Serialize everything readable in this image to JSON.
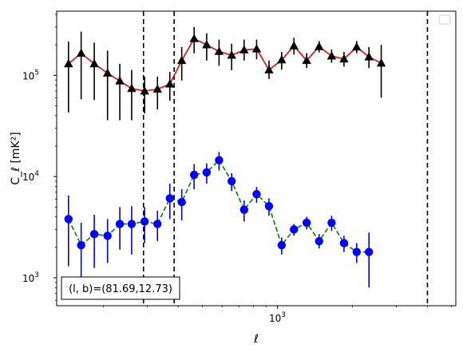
{
  "chart_data": {
    "type": "scatter",
    "title": "",
    "xlabel": "ℓ",
    "ylabel": "C_ℓ  [mK²]",
    "xscale": "log",
    "yscale": "log",
    "xlim": [
      130,
      5200
    ],
    "ylim": [
      530,
      430000
    ],
    "grid": false,
    "legend": {
      "placement": "top-right",
      "entries": []
    },
    "x_ticks": [
      {
        "value": 1000,
        "base": "10",
        "exp": "3"
      }
    ],
    "y_ticks": [
      {
        "value": 1000,
        "base": "10",
        "exp": "3"
      },
      {
        "value": 10000,
        "base": "10",
        "exp": "4"
      },
      {
        "value": 100000,
        "base": "10",
        "exp": "5"
      }
    ],
    "annotation": "(l, b)=(81.69,12.73)",
    "vlines": [
      290,
      385,
      4000
    ],
    "series": [
      {
        "marker": "triangle",
        "color": "#000000",
        "line_color": "#ff0000",
        "line_style": "solid",
        "points": [
          {
            "x": 145,
            "y": 130000,
            "lo": 43000,
            "hi": 215000
          },
          {
            "x": 163,
            "y": 165000,
            "lo": 58000,
            "hi": 270000
          },
          {
            "x": 184,
            "y": 130000,
            "lo": 57000,
            "hi": 210000
          },
          {
            "x": 208,
            "y": 105000,
            "lo": 36000,
            "hi": 175000
          },
          {
            "x": 233,
            "y": 88000,
            "lo": 36000,
            "hi": 130000
          },
          {
            "x": 260,
            "y": 74000,
            "lo": 36000,
            "hi": 113000
          },
          {
            "x": 293,
            "y": 70000,
            "lo": 42000,
            "hi": 97000
          },
          {
            "x": 330,
            "y": 73000,
            "lo": 46000,
            "hi": 97000
          },
          {
            "x": 370,
            "y": 82000,
            "lo": 56000,
            "hi": 108000
          },
          {
            "x": 413,
            "y": 140000,
            "lo": 89000,
            "hi": 190000
          },
          {
            "x": 463,
            "y": 230000,
            "lo": 165000,
            "hi": 300000
          },
          {
            "x": 520,
            "y": 200000,
            "lo": 140000,
            "hi": 260000
          },
          {
            "x": 583,
            "y": 172000,
            "lo": 124000,
            "hi": 225000
          },
          {
            "x": 655,
            "y": 158000,
            "lo": 112000,
            "hi": 205000
          },
          {
            "x": 735,
            "y": 178000,
            "lo": 140000,
            "hi": 225000
          },
          {
            "x": 825,
            "y": 182000,
            "lo": 144000,
            "hi": 225000
          },
          {
            "x": 925,
            "y": 113000,
            "lo": 92000,
            "hi": 140000
          },
          {
            "x": 1040,
            "y": 142000,
            "lo": 114000,
            "hi": 170000
          },
          {
            "x": 1165,
            "y": 195000,
            "lo": 160000,
            "hi": 235000
          },
          {
            "x": 1310,
            "y": 140000,
            "lo": 118000,
            "hi": 165000
          },
          {
            "x": 1470,
            "y": 192000,
            "lo": 168000,
            "hi": 218000
          },
          {
            "x": 1650,
            "y": 155000,
            "lo": 133000,
            "hi": 180000
          },
          {
            "x": 1850,
            "y": 145000,
            "lo": 122000,
            "hi": 170000
          },
          {
            "x": 2080,
            "y": 190000,
            "lo": 165000,
            "hi": 218000
          },
          {
            "x": 2330,
            "y": 152000,
            "lo": 118000,
            "hi": 190000
          },
          {
            "x": 2610,
            "y": 132000,
            "lo": 60000,
            "hi": 200000
          }
        ]
      },
      {
        "marker": "circle",
        "color": "#0000ff",
        "line_color": "#008000",
        "line_style": "dashed",
        "points": [
          {
            "x": 145,
            "y": 3800,
            "lo": 1300,
            "hi": 6500
          },
          {
            "x": 163,
            "y": 2100,
            "lo": 800,
            "hi": 3500
          },
          {
            "x": 184,
            "y": 2700,
            "lo": 1250,
            "hi": 4200
          },
          {
            "x": 208,
            "y": 2600,
            "lo": 1400,
            "hi": 3800
          },
          {
            "x": 233,
            "y": 3400,
            "lo": 1900,
            "hi": 5000
          },
          {
            "x": 260,
            "y": 3400,
            "lo": 1700,
            "hi": 5100
          },
          {
            "x": 293,
            "y": 3600,
            "lo": 2200,
            "hi": 5000
          },
          {
            "x": 330,
            "y": 3400,
            "lo": 2300,
            "hi": 4600
          },
          {
            "x": 370,
            "y": 6100,
            "lo": 3800,
            "hi": 8500
          },
          {
            "x": 413,
            "y": 5600,
            "lo": 3700,
            "hi": 7500
          },
          {
            "x": 463,
            "y": 10400,
            "lo": 7500,
            "hi": 13300
          },
          {
            "x": 520,
            "y": 11000,
            "lo": 8500,
            "hi": 13500
          },
          {
            "x": 583,
            "y": 14500,
            "lo": 11500,
            "hi": 17500
          },
          {
            "x": 655,
            "y": 9000,
            "lo": 7200,
            "hi": 10800
          },
          {
            "x": 735,
            "y": 4700,
            "lo": 3600,
            "hi": 5800
          },
          {
            "x": 825,
            "y": 6700,
            "lo": 5500,
            "hi": 7900
          },
          {
            "x": 925,
            "y": 5100,
            "lo": 4100,
            "hi": 6100
          },
          {
            "x": 1040,
            "y": 2100,
            "lo": 1700,
            "hi": 2500
          },
          {
            "x": 1165,
            "y": 3000,
            "lo": 2600,
            "hi": 3400
          },
          {
            "x": 1310,
            "y": 3500,
            "lo": 3000,
            "hi": 4000
          },
          {
            "x": 1470,
            "y": 2300,
            "lo": 1950,
            "hi": 2700
          },
          {
            "x": 1650,
            "y": 3500,
            "lo": 2900,
            "hi": 4100
          },
          {
            "x": 1850,
            "y": 2200,
            "lo": 1800,
            "hi": 2600
          },
          {
            "x": 2080,
            "y": 1800,
            "lo": 1400,
            "hi": 2200
          },
          {
            "x": 2330,
            "y": 1800,
            "lo": 800,
            "hi": 2800
          }
        ]
      }
    ]
  }
}
